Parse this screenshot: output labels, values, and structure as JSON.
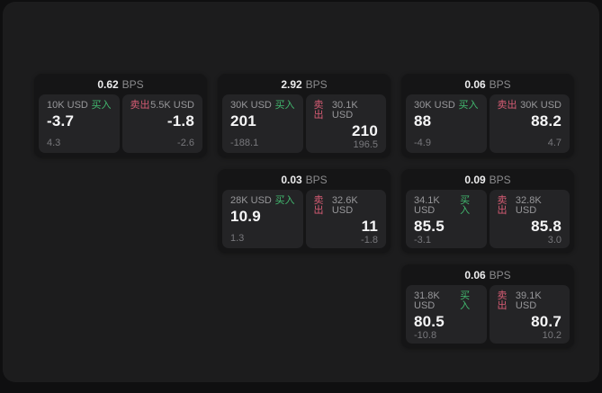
{
  "labels": {
    "bps_unit": "BPS",
    "buy": "买入",
    "sell": "卖出"
  },
  "colors": {
    "buy": "#42b96f",
    "sell": "#d65c74"
  },
  "cards": [
    {
      "col": 1,
      "row": 1,
      "bps": "0.62",
      "buy": {
        "notional": "10K USD",
        "price": "-3.7",
        "delta": "4.3"
      },
      "sell": {
        "notional": "5.5K USD",
        "price": "-1.8",
        "delta": "-2.6"
      }
    },
    {
      "col": 2,
      "row": 1,
      "bps": "2.92",
      "buy": {
        "notional": "30K USD",
        "price": "201",
        "delta": "-188.1"
      },
      "sell": {
        "notional": "30.1K USD",
        "price": "210",
        "delta": "196.5"
      }
    },
    {
      "col": 3,
      "row": 1,
      "bps": "0.06",
      "buy": {
        "notional": "30K USD",
        "price": "88",
        "delta": "-4.9"
      },
      "sell": {
        "notional": "30K USD",
        "price": "88.2",
        "delta": "4.7"
      }
    },
    {
      "col": 2,
      "row": 2,
      "bps": "0.03",
      "buy": {
        "notional": "28K USD",
        "price": "10.9",
        "delta": "1.3"
      },
      "sell": {
        "notional": "32.6K USD",
        "price": "11",
        "delta": "-1.8"
      }
    },
    {
      "col": 3,
      "row": 2,
      "bps": "0.09",
      "buy": {
        "notional": "34.1K USD",
        "price": "85.5",
        "delta": "-3.1"
      },
      "sell": {
        "notional": "32.8K USD",
        "price": "85.8",
        "delta": "3.0"
      }
    },
    {
      "col": 3,
      "row": 3,
      "bps": "0.06",
      "buy": {
        "notional": "31.8K USD",
        "price": "80.5",
        "delta": "-10.8"
      },
      "sell": {
        "notional": "39.1K USD",
        "price": "80.7",
        "delta": "10.2"
      }
    }
  ]
}
